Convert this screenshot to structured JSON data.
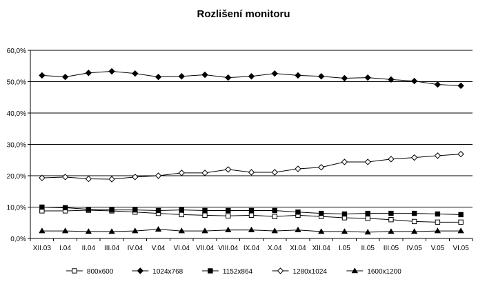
{
  "chart_data": {
    "type": "line",
    "title": "Rozlišení monitoru",
    "xlabel": "",
    "ylabel": "",
    "ylim": [
      0,
      60
    ],
    "y_ticks": [
      "0,0%",
      "10,0%",
      "20,0%",
      "30,0%",
      "40,0%",
      "50,0%",
      "60,0%"
    ],
    "grid": "horizontal",
    "legend_position": "bottom",
    "categories": [
      "XII.03",
      "I.04",
      "II.04",
      "III.04",
      "IV.04",
      "V.04",
      "VI.04",
      "VII.04",
      "VIII.04",
      "IX.04",
      "X.04",
      "XI.04",
      "XII.04",
      "I.05",
      "II.05",
      "III.05",
      "IV.05",
      "V.05",
      "VI.05"
    ],
    "series": [
      {
        "name": "800x600",
        "marker": "square-open",
        "values": [
          8.8,
          8.8,
          9.0,
          8.8,
          8.4,
          8.0,
          7.6,
          7.4,
          7.2,
          7.4,
          7.0,
          7.4,
          7.0,
          6.6,
          6.4,
          6.0,
          5.4,
          5.2,
          5.2
        ]
      },
      {
        "name": "1024x768",
        "marker": "diamond-filled",
        "values": [
          52.0,
          51.5,
          52.8,
          53.3,
          52.6,
          51.5,
          51.7,
          52.2,
          51.3,
          51.7,
          52.6,
          52.0,
          51.7,
          51.1,
          51.3,
          50.7,
          50.2,
          49.1,
          48.7
        ]
      },
      {
        "name": "1152x864",
        "marker": "square-filled",
        "values": [
          10.0,
          9.8,
          9.3,
          9.1,
          9.1,
          8.9,
          9.1,
          8.9,
          8.9,
          8.9,
          8.9,
          8.4,
          8.0,
          7.8,
          8.0,
          8.0,
          8.0,
          7.8,
          7.6
        ]
      },
      {
        "name": "1280x1024",
        "marker": "diamond-open",
        "values": [
          19.3,
          19.6,
          19.0,
          18.9,
          19.6,
          20.0,
          20.9,
          20.9,
          22.0,
          21.1,
          21.1,
          22.2,
          22.7,
          24.4,
          24.4,
          25.3,
          25.8,
          26.4,
          26.9
        ]
      },
      {
        "name": "1600x1200",
        "marker": "triangle-filled",
        "values": [
          2.4,
          2.4,
          2.2,
          2.2,
          2.4,
          2.9,
          2.4,
          2.4,
          2.7,
          2.7,
          2.4,
          2.7,
          2.2,
          2.2,
          2.0,
          2.2,
          2.2,
          2.4,
          2.4
        ]
      }
    ]
  }
}
